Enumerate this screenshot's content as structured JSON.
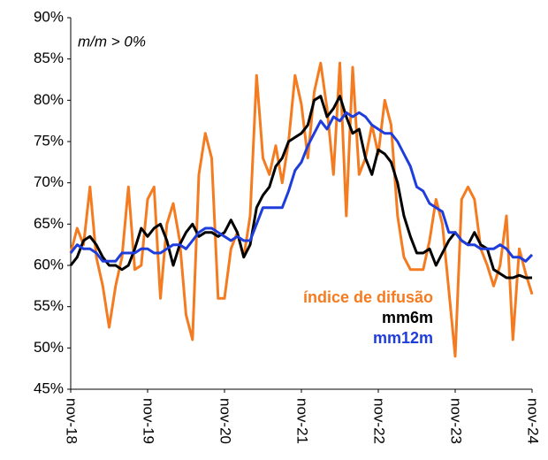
{
  "chart_data": {
    "type": "line",
    "annotation": "m/m > 0%",
    "categories": [
      "nov-18",
      null,
      null,
      null,
      null,
      null,
      null,
      null,
      null,
      null,
      null,
      null,
      "nov-19",
      null,
      null,
      null,
      null,
      null,
      null,
      null,
      null,
      null,
      null,
      null,
      "nov-20",
      null,
      null,
      null,
      null,
      null,
      null,
      null,
      null,
      null,
      null,
      null,
      "nov-21",
      null,
      null,
      null,
      null,
      null,
      null,
      null,
      null,
      null,
      null,
      null,
      "nov-22",
      null,
      null,
      null,
      null,
      null,
      null,
      null,
      null,
      null,
      null,
      null,
      "nov-23",
      null,
      null,
      null,
      null,
      null,
      null,
      null,
      null,
      null,
      null,
      null,
      "nov-24"
    ],
    "series": [
      {
        "name": "índice de difusão",
        "color": "#f47b20",
        "values": [
          61.5,
          64.5,
          62.5,
          69.5,
          61,
          57.5,
          52.5,
          57.5,
          61,
          69.5,
          59.5,
          60,
          68,
          69.5,
          56,
          65,
          67.5,
          63,
          54,
          51,
          71,
          76,
          73,
          56,
          56,
          62,
          64,
          61,
          66,
          83,
          73,
          71,
          74.5,
          70,
          75,
          83,
          79.5,
          73,
          81,
          84.5,
          79,
          71,
          84.5,
          66,
          84,
          71,
          73,
          77,
          73.5,
          80,
          77,
          66,
          61,
          59.5,
          59.5,
          59.5,
          63,
          68,
          65,
          57,
          49,
          68,
          69.5,
          68,
          62,
          60,
          57.5,
          60,
          66,
          51,
          62,
          59,
          56.5
        ]
      },
      {
        "name": "mm6m",
        "color": "#000000",
        "values": [
          60,
          61,
          63,
          63.5,
          62.5,
          61,
          60,
          60,
          59.5,
          60,
          62,
          64.5,
          63.5,
          64.5,
          65,
          63,
          60,
          62.5,
          64,
          65,
          63.5,
          64,
          64,
          63.5,
          64,
          65.5,
          64,
          61,
          62.5,
          67,
          68.5,
          69.5,
          72,
          73,
          75,
          75.5,
          76,
          77,
          80,
          80.5,
          78,
          79,
          80.5,
          78,
          76,
          76.5,
          73,
          71,
          74,
          73.5,
          72.5,
          70,
          66,
          63.5,
          61.5,
          61.5,
          62,
          60,
          61.5,
          63,
          64,
          63,
          62.5,
          64,
          62.5,
          62,
          59.5,
          59,
          58.5,
          58.5,
          58.8,
          58.5,
          58.5
        ]
      },
      {
        "name": "mm12m",
        "color": "#1f3ddb",
        "values": [
          61.5,
          62.5,
          62,
          62,
          61.5,
          60.5,
          60.5,
          60.5,
          61.5,
          61.5,
          61.5,
          62,
          62,
          61.5,
          61.5,
          62,
          62.5,
          62.5,
          62,
          63,
          64,
          64.5,
          64.5,
          64,
          63.5,
          63,
          63.5,
          63,
          63,
          65,
          67,
          67,
          67,
          67,
          69,
          71.5,
          72.5,
          74.5,
          76,
          77.5,
          76.5,
          78,
          77.5,
          78.5,
          78,
          78.5,
          78,
          77,
          76.5,
          76,
          76,
          75,
          73.5,
          72,
          69.5,
          69,
          67.5,
          67,
          66.5,
          64,
          64,
          63,
          62.5,
          62.5,
          62,
          62,
          62,
          62.5,
          62,
          61,
          61,
          60.5,
          61.3
        ]
      }
    ],
    "ylim": [
      45,
      90
    ],
    "yticks": [
      {
        "value": 45,
        "label": "45%"
      },
      {
        "value": 50,
        "label": "50%"
      },
      {
        "value": 55,
        "label": "55%"
      },
      {
        "value": 60,
        "label": "60%"
      },
      {
        "value": 65,
        "label": "65%"
      },
      {
        "value": 70,
        "label": "70%"
      },
      {
        "value": 75,
        "label": "75%"
      },
      {
        "value": 80,
        "label": "80%"
      },
      {
        "value": 85,
        "label": "85%"
      },
      {
        "value": 90,
        "label": "90%"
      }
    ]
  }
}
